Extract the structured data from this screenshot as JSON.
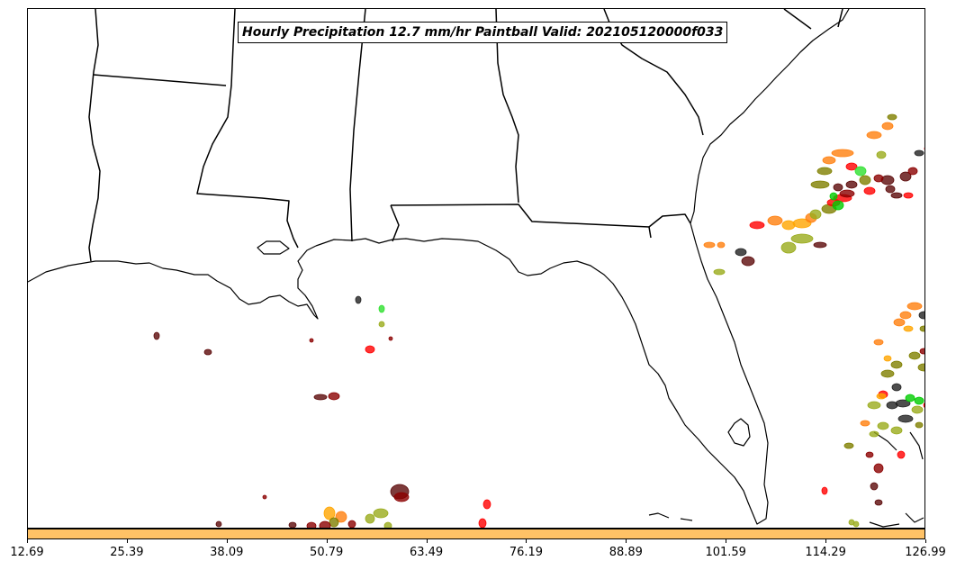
{
  "title": "Hourly Precipitation 12.7 mm/hr Paintball Valid: 202105120000f033",
  "colorbar": {
    "color": "#ffc266",
    "tick_labels": [
      "12.69",
      "25.39",
      "38.09",
      "50.79",
      "63.49",
      "76.19",
      "88.89",
      "101.59",
      "114.29",
      "126.99"
    ]
  },
  "colors": {
    "member_palette": [
      "#8b0000",
      "#ff0000",
      "#ff7f0e",
      "#ffa500",
      "#808000",
      "#9aab1c",
      "#00cc00",
      "#2ee02e",
      "#5c0a0a",
      "#222222"
    ]
  }
}
